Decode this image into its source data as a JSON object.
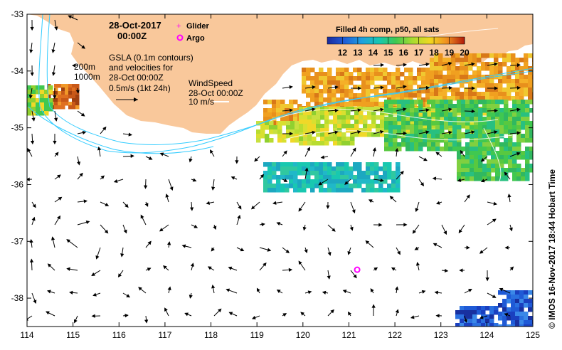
{
  "header": {
    "date": "28-Oct-2017",
    "time": "00:00Z"
  },
  "legend": {
    "glider_label": "Glider",
    "argo_label": "Argo",
    "glider_color": "#ff00ff",
    "argo_color": "#ff00ff"
  },
  "gsla_note": {
    "line1": "GSLA (0.1m contours)",
    "line2": "and velocities for",
    "line3": "28-Oct 00:00Z",
    "line4": "0.5m/s (1kt 24h)"
  },
  "depth_labels": {
    "d200": "200m",
    "d1000": "1000m"
  },
  "wind_note": {
    "line1": "WindSpeed",
    "line2": "28-Oct 00:00Z",
    "line3": "10 m/s"
  },
  "colorbar": {
    "title": "Filled 4h comp, p50, all sats",
    "ticks": [
      "12",
      "13",
      "14",
      "15",
      "16",
      "17",
      "18",
      "19",
      "20"
    ],
    "min": 11,
    "max": 20,
    "colors": [
      "#1a0a8c",
      "#1f3ad6",
      "#1f8ee8",
      "#18c8c8",
      "#3fcf6a",
      "#a8de32",
      "#f0e020",
      "#f5a020",
      "#e05a14",
      "#a01a0a"
    ]
  },
  "credit": "© IMOS 16-Nov-2017 18:44 Hobart Time",
  "axes": {
    "x_ticks": [
      "114",
      "115",
      "116",
      "117",
      "118",
      "119",
      "120",
      "121",
      "122",
      "123",
      "124",
      "125"
    ],
    "y_ticks": [
      "-33",
      "-34",
      "-35",
      "-36",
      "-37",
      "-38"
    ],
    "lon_range": [
      114,
      125
    ],
    "lat_range": [
      -33,
      -38.5
    ]
  },
  "colors": {
    "land": "#f9c89b",
    "contour": "#33ccff",
    "gsla_contour": "#ffffff"
  },
  "argo_float": {
    "lon": 121.18,
    "lat": -37.5
  }
}
